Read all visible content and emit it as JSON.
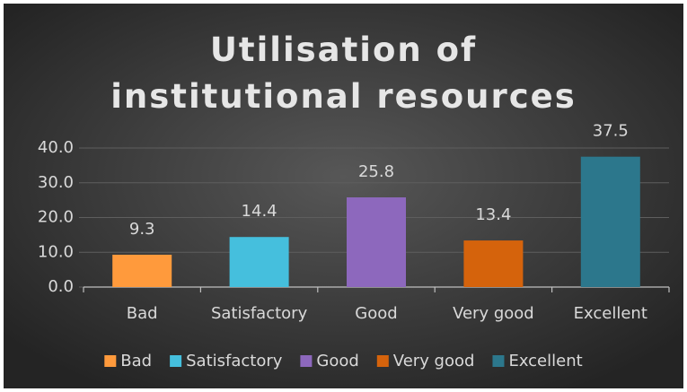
{
  "chart_data": {
    "type": "bar",
    "title": "Utilisation of institutional resources",
    "categories": [
      "Bad",
      "Satisfactory",
      "Good",
      "Very good",
      "Excellent"
    ],
    "values": [
      9.3,
      14.4,
      25.8,
      13.4,
      37.5
    ],
    "colors": [
      "#ff9a3c",
      "#45bfdd",
      "#8d68bd",
      "#d5630c",
      "#2c778c"
    ],
    "ylim": [
      0,
      40
    ],
    "yticks": [
      {
        "value": 0,
        "label": "0.0"
      },
      {
        "value": 10,
        "label": "10.0"
      },
      {
        "value": 20,
        "label": "20.0"
      },
      {
        "value": 30,
        "label": "30.0"
      },
      {
        "value": 40,
        "label": "40.0"
      }
    ],
    "grid": true,
    "legend": "bottom"
  }
}
